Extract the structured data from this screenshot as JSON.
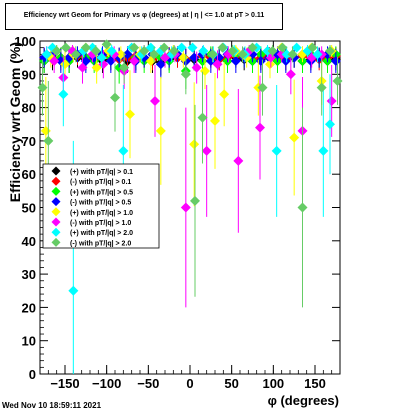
{
  "title": "Efficiency wrt Geom for Primary vs φ (degrees) at | η | <= 1.0 at pT > 0.11",
  "footer_timestamp": "Wed Nov 10 18:59:11 2021",
  "chart_data": {
    "type": "scatter",
    "title": "Efficiency wrt Geom for Primary vs φ (degrees) at | η | <= 1.0 at pT > 0.11",
    "xlabel": "φ (degrees)",
    "ylabel": "Efficiency wrt Geom (%)",
    "xlim": [
      -180,
      180
    ],
    "ylim": [
      0,
      100
    ],
    "xticks": [
      -150,
      -100,
      -50,
      0,
      50,
      100,
      150
    ],
    "xtick_labels": [
      "−150",
      "−100",
      "−50",
      "0",
      "50",
      "100",
      "150"
    ],
    "yticks": [
      0,
      10,
      20,
      30,
      40,
      50,
      60,
      70,
      80,
      90,
      100
    ],
    "ytick_labels": [
      "0",
      "10",
      "20",
      "30",
      "40",
      "50",
      "60",
      "70",
      "80",
      "90",
      "100"
    ],
    "grid": false,
    "legend_position": "middle-left",
    "series": [
      {
        "name": "(+) with pT/|q| > 0.1",
        "color": "#000000",
        "marker": "diamond",
        "x": [
          -175,
          -165,
          -155,
          -145,
          -135,
          -125,
          -115,
          -105,
          -95,
          -85,
          -75,
          -65,
          -55,
          -45,
          -35,
          -25,
          -15,
          -5,
          5,
          15,
          25,
          35,
          45,
          55,
          65,
          75,
          85,
          95,
          105,
          115,
          125,
          135,
          145,
          155,
          165,
          175
        ],
        "y": [
          94,
          94.5,
          95,
          94,
          95,
          94.5,
          95,
          94,
          94.5,
          95,
          94,
          94.5,
          95,
          94,
          93.5,
          94.5,
          95,
          94,
          94.5,
          94,
          95,
          94.5,
          94,
          95,
          94.5,
          94,
          94.5,
          95,
          94,
          94.5,
          95,
          94,
          94.5,
          95,
          94,
          94.5
        ]
      },
      {
        "name": "(-) with pT/|q| > 0.1",
        "color": "#ff0000",
        "marker": "diamond",
        "x": [
          -175,
          -165,
          -155,
          -145,
          -135,
          -125,
          -115,
          -105,
          -95,
          -85,
          -75,
          -65,
          -55,
          -45,
          -35,
          -25,
          -15,
          -5,
          5,
          15,
          25,
          35,
          45,
          55,
          65,
          75,
          85,
          95,
          105,
          115,
          125,
          135,
          145,
          155,
          165,
          175
        ],
        "y": [
          95,
          95.5,
          94.5,
          95,
          95.5,
          95,
          94.5,
          95.5,
          95,
          94.5,
          95,
          95.5,
          95,
          94.5,
          95,
          95.5,
          95,
          94.5,
          95,
          95.5,
          95,
          94.5,
          95,
          95.5,
          95,
          94.5,
          95,
          95.5,
          95,
          94.5,
          95,
          95.5,
          95,
          94.5,
          95,
          95.5
        ]
      },
      {
        "name": "(+) with pT/|q| > 0.5",
        "color": "#00ff00",
        "marker": "diamond",
        "x": [
          -175,
          -165,
          -155,
          -145,
          -135,
          -125,
          -115,
          -105,
          -95,
          -85,
          -75,
          -65,
          -55,
          -45,
          -35,
          -25,
          -15,
          -5,
          5,
          15,
          25,
          35,
          45,
          55,
          65,
          75,
          85,
          95,
          105,
          115,
          125,
          135,
          145,
          155,
          165,
          175
        ],
        "y": [
          94,
          96,
          95,
          94,
          96,
          95,
          94,
          96,
          95,
          92,
          96,
          95,
          94,
          96,
          95,
          94,
          96,
          91,
          95,
          94,
          96,
          95,
          94,
          96,
          95,
          94,
          96,
          95,
          94,
          96,
          95,
          94,
          96,
          95,
          94,
          96
        ]
      },
      {
        "name": "(-) with pT/|q| > 0.5",
        "color": "#0000ff",
        "marker": "diamond",
        "x": [
          -175,
          -165,
          -155,
          -145,
          -135,
          -125,
          -115,
          -105,
          -95,
          -85,
          -75,
          -65,
          -55,
          -45,
          -35,
          -25,
          -15,
          -5,
          5,
          15,
          25,
          35,
          45,
          55,
          65,
          75,
          85,
          95,
          105,
          115,
          125,
          135,
          145,
          155,
          165,
          175
        ],
        "y": [
          95,
          96,
          94,
          95,
          96,
          94,
          95,
          96,
          94,
          95,
          96,
          94,
          95,
          96,
          93,
          95,
          96,
          94,
          95,
          96,
          94,
          95,
          96,
          94,
          95,
          96,
          94,
          95,
          96,
          94,
          95,
          96,
          94,
          95,
          96,
          94
        ]
      },
      {
        "name": "(+) with pT/|q| > 1.0",
        "color": "#ffff00",
        "marker": "diamond",
        "x": [
          -173,
          -167,
          -160,
          -150,
          -140,
          -125,
          -112,
          -98,
          -83,
          -72,
          -60,
          -47,
          -35,
          -20,
          -8,
          5,
          18,
          30,
          41,
          55,
          68,
          82,
          96,
          110,
          125,
          135,
          146,
          158,
          170
        ],
        "y": [
          73,
          95,
          97,
          93,
          96,
          98,
          92,
          97,
          96,
          78,
          96,
          94,
          73,
          97,
          95,
          69,
          91,
          76,
          84,
          97,
          95,
          86,
          93,
          98,
          71,
          96,
          98,
          88,
          97
        ]
      },
      {
        "name": "(-) with pT/|q| > 1.0",
        "color": "#ff00ff",
        "marker": "diamond",
        "x": [
          -172,
          -163,
          -152,
          -141,
          -129,
          -117,
          -104,
          -91,
          -79,
          -67,
          -55,
          -42,
          -30,
          -18,
          -5,
          8,
          20,
          33,
          46,
          58,
          71,
          84,
          97,
          110,
          121,
          135,
          146,
          158,
          170
        ],
        "y": [
          96,
          94,
          89,
          97,
          92,
          96,
          93,
          96,
          91,
          94,
          97,
          82,
          95,
          96,
          50,
          92,
          67,
          93,
          96,
          64,
          97,
          74,
          95,
          96,
          90,
          73,
          95,
          96,
          82
        ]
      },
      {
        "name": "(+) with pT/|q| > 2.0",
        "color": "#00ffff",
        "marker": "diamond",
        "x": [
          -172,
          -165,
          -152,
          -140,
          -128,
          -117,
          -106,
          -94,
          -80,
          -70,
          -58,
          -47,
          -35,
          -22,
          -10,
          3,
          16,
          28,
          40,
          53,
          66,
          80,
          93,
          104,
          116,
          128,
          141,
          153,
          160,
          168
        ],
        "y": [
          96,
          98,
          84,
          25,
          97,
          98,
          95,
          97,
          67,
          98,
          96,
          98,
          97,
          96,
          98,
          98,
          97,
          96,
          98,
          97,
          96,
          98,
          97,
          67,
          96,
          98,
          97,
          96,
          67,
          75
        ]
      },
      {
        "name": "(-) with pT/|q| > 2.0",
        "color": "#66cc66",
        "marker": "diamond",
        "x": [
          -177,
          -170,
          -160,
          -149,
          -137,
          -125,
          -113,
          -100,
          -90,
          -79,
          -67,
          -55,
          -43,
          -31,
          -19,
          -5,
          6,
          15,
          27,
          39,
          51,
          63,
          75,
          87,
          99,
          111,
          123,
          135,
          147,
          158,
          168,
          177
        ],
        "y": [
          86,
          70,
          97,
          98,
          96,
          98,
          97,
          99,
          83,
          92,
          98,
          97,
          96,
          98,
          97,
          90,
          52,
          77,
          96,
          98,
          97,
          96,
          98,
          86,
          97,
          98,
          96,
          50,
          98,
          86,
          97,
          88
        ]
      }
    ]
  }
}
